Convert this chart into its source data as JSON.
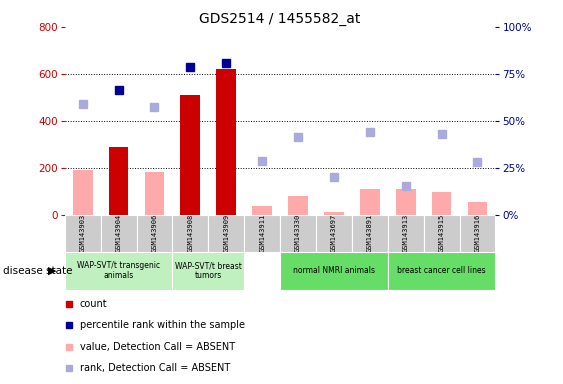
{
  "title": "GDS2514 / 1455582_at",
  "samples": [
    "GSM143903",
    "GSM143904",
    "GSM143906",
    "GSM143908",
    "GSM143909",
    "GSM143911",
    "GSM143330",
    "GSM143697",
    "GSM143891",
    "GSM143913",
    "GSM143915",
    "GSM143916"
  ],
  "count_values": [
    null,
    290,
    null,
    510,
    620,
    null,
    null,
    null,
    null,
    null,
    null,
    null
  ],
  "count_absent_values": [
    190,
    null,
    185,
    null,
    null,
    40,
    80,
    15,
    110,
    110,
    100,
    55
  ],
  "percentile_values": [
    null,
    530,
    null,
    630,
    645,
    null,
    null,
    null,
    null,
    null,
    null,
    null
  ],
  "percentile_absent_values": [
    470,
    null,
    460,
    null,
    null,
    230,
    330,
    160,
    355,
    125,
    345,
    225
  ],
  "group_defs": [
    {
      "start": 0,
      "end": 3,
      "label": "WAP-SVT/t transgenic\nanimals",
      "color": "#c0f0c0"
    },
    {
      "start": 3,
      "end": 5,
      "label": "WAP-SVT/t breast\ntumors",
      "color": "#c0f0c0"
    },
    {
      "start": 5,
      "end": 6,
      "label": "",
      "color": "#ffffff"
    },
    {
      "start": 6,
      "end": 9,
      "label": "normal NMRI animals",
      "color": "#66dd66"
    },
    {
      "start": 9,
      "end": 12,
      "label": "breast cancer cell lines",
      "color": "#66dd66"
    }
  ],
  "ylim_left": [
    0,
    800
  ],
  "ylim_right": [
    0,
    100
  ],
  "yticks_left": [
    0,
    200,
    400,
    600,
    800
  ],
  "yticks_right": [
    0,
    25,
    50,
    75,
    100
  ],
  "color_count": "#cc0000",
  "color_count_absent": "#ffaaaa",
  "color_percentile": "#000099",
  "color_percentile_absent": "#aaaadd",
  "bg_gray": "#cccccc",
  "legend_items": [
    {
      "color": "#cc0000",
      "label": "count"
    },
    {
      "color": "#000099",
      "label": "percentile rank within the sample"
    },
    {
      "color": "#ffaaaa",
      "label": "value, Detection Call = ABSENT"
    },
    {
      "color": "#aaaadd",
      "label": "rank, Detection Call = ABSENT"
    }
  ]
}
